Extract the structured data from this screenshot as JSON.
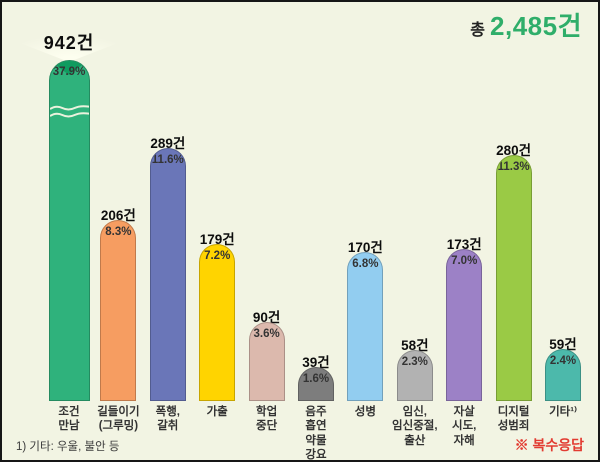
{
  "chart_data": {
    "type": "bar",
    "title": "총 2,485건",
    "total": {
      "prefix": "총",
      "value": "2,485건",
      "value_color": "#2fae6a"
    },
    "unit": "건",
    "ylim": [
      0,
      400
    ],
    "grid": false,
    "legend": null,
    "broken_axis_category": "조건만남",
    "categories": [
      "조건만남",
      "길들이기(그루밍)",
      "폭행,갈취",
      "가출",
      "학업중단",
      "음주흡연약물강요",
      "성병",
      "임신,임신중절,출산",
      "자살시도,자해",
      "디지털성범죄",
      "기타1)"
    ],
    "values": [
      942,
      206,
      289,
      179,
      90,
      39,
      170,
      58,
      173,
      280,
      59
    ],
    "percents": [
      "37.9%",
      "8.3%",
      "11.6%",
      "7.2%",
      "3.6%",
      "1.6%",
      "6.8%",
      "2.3%",
      "7.0%",
      "11.3%",
      "2.4%"
    ],
    "bars": [
      {
        "label_lines": [
          "조건",
          "만남"
        ],
        "value": 942,
        "value_label": "942건",
        "pct": "37.9%",
        "color": "#2fb27c",
        "cap_color": "#0f9b5f",
        "broken": true
      },
      {
        "label_lines": [
          "길들이기",
          "(그루밍)"
        ],
        "value": 206,
        "value_label": "206건",
        "pct": "8.3%",
        "color": "#f69d61"
      },
      {
        "label_lines": [
          "폭행,",
          "갈취"
        ],
        "value": 289,
        "value_label": "289건",
        "pct": "11.6%",
        "color": "#6a76b8"
      },
      {
        "label_lines": [
          "가출"
        ],
        "value": 179,
        "value_label": "179건",
        "pct": "7.2%",
        "color": "#ffd400"
      },
      {
        "label_lines": [
          "학업",
          "중단"
        ],
        "value": 90,
        "value_label": "90건",
        "pct": "3.6%",
        "color": "#dcb9ad"
      },
      {
        "label_lines": [
          "음주",
          "흡연",
          "약물",
          "강요"
        ],
        "value": 39,
        "value_label": "39건",
        "pct": "1.6%",
        "color": "#7d7d7d"
      },
      {
        "label_lines": [
          "성병"
        ],
        "value": 170,
        "value_label": "170건",
        "pct": "6.8%",
        "color": "#92cdf0"
      },
      {
        "label_lines": [
          "임신,",
          "임신중절,",
          "출산"
        ],
        "value": 58,
        "value_label": "58건",
        "pct": "2.3%",
        "color": "#b2b2b2"
      },
      {
        "label_lines": [
          "자살",
          "시도,",
          "자해"
        ],
        "value": 173,
        "value_label": "173건",
        "pct": "7.0%",
        "color": "#9c81c6"
      },
      {
        "label_lines": [
          "디지털",
          "성범죄"
        ],
        "value": 280,
        "value_label": "280건",
        "pct": "11.3%",
        "color": "#9aca45"
      },
      {
        "label_lines": [
          "기타¹⁾"
        ],
        "value": 59,
        "value_label": "59건",
        "pct": "2.4%",
        "color": "#4cb9ab"
      }
    ],
    "footnote": "1) 기타: 우울, 불안 등",
    "note": {
      "text": "※ 복수응답",
      "color": "#e23b31"
    },
    "background_color": "#f2f4e3",
    "break_mark_color": "#eaf2dd"
  }
}
